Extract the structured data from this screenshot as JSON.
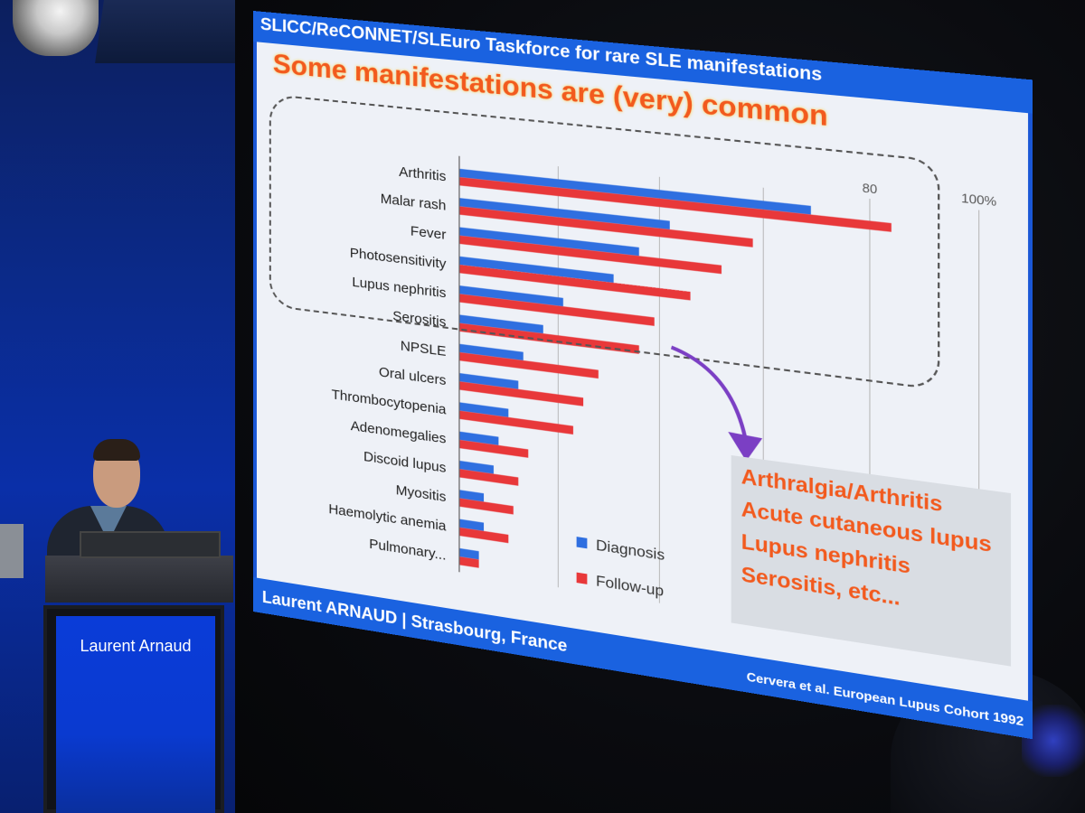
{
  "podium": {
    "name": "Laurent Arnaud"
  },
  "slide": {
    "header": "SLICC/ReCONNET/SLEuro Taskforce for rare SLE manifestations",
    "headline": "Some manifestations are (very) common",
    "callout": [
      "Arthralgia/Arthritis",
      "Acute cutaneous lupus",
      "Lupus nephritis",
      "Serositis, etc..."
    ],
    "footer_author": "Laurent ARNAUD | Strasbourg, France",
    "footer_source": "Cervera et al. European Lupus Cohort 1992"
  },
  "colors": {
    "diagnosis": "#2f6fe0",
    "followup": "#e8383a",
    "slide_blue": "#1a62e0",
    "accent_orange": "#f25a1e"
  },
  "chart_data": {
    "type": "bar",
    "orientation": "horizontal",
    "categories": [
      "Arthritis",
      "Malar rash",
      "Fever",
      "Photosensitivity",
      "Lupus nephritis",
      "Serositis",
      "NPSLE",
      "Oral ulcers",
      "Thrombocytopenia",
      "Adenomegalies",
      "Discoid lupus",
      "Myositis",
      "Haemolytic anemia",
      "Pulmonary..."
    ],
    "series": [
      {
        "name": "Diagnosis",
        "values": [
          69,
          42,
          36,
          31,
          21,
          17,
          13,
          12,
          10,
          8,
          7,
          5,
          5,
          4
        ]
      },
      {
        "name": "Follow-up",
        "values": [
          84,
          58,
          52,
          46,
          39,
          36,
          28,
          25,
          23,
          14,
          12,
          11,
          10,
          4
        ]
      }
    ],
    "x_tick_labels": [
      "80",
      "100%"
    ],
    "x_tick_values": [
      80,
      100
    ],
    "xlim": [
      0,
      100
    ],
    "grid": true,
    "legend_position": "bottom-right"
  }
}
